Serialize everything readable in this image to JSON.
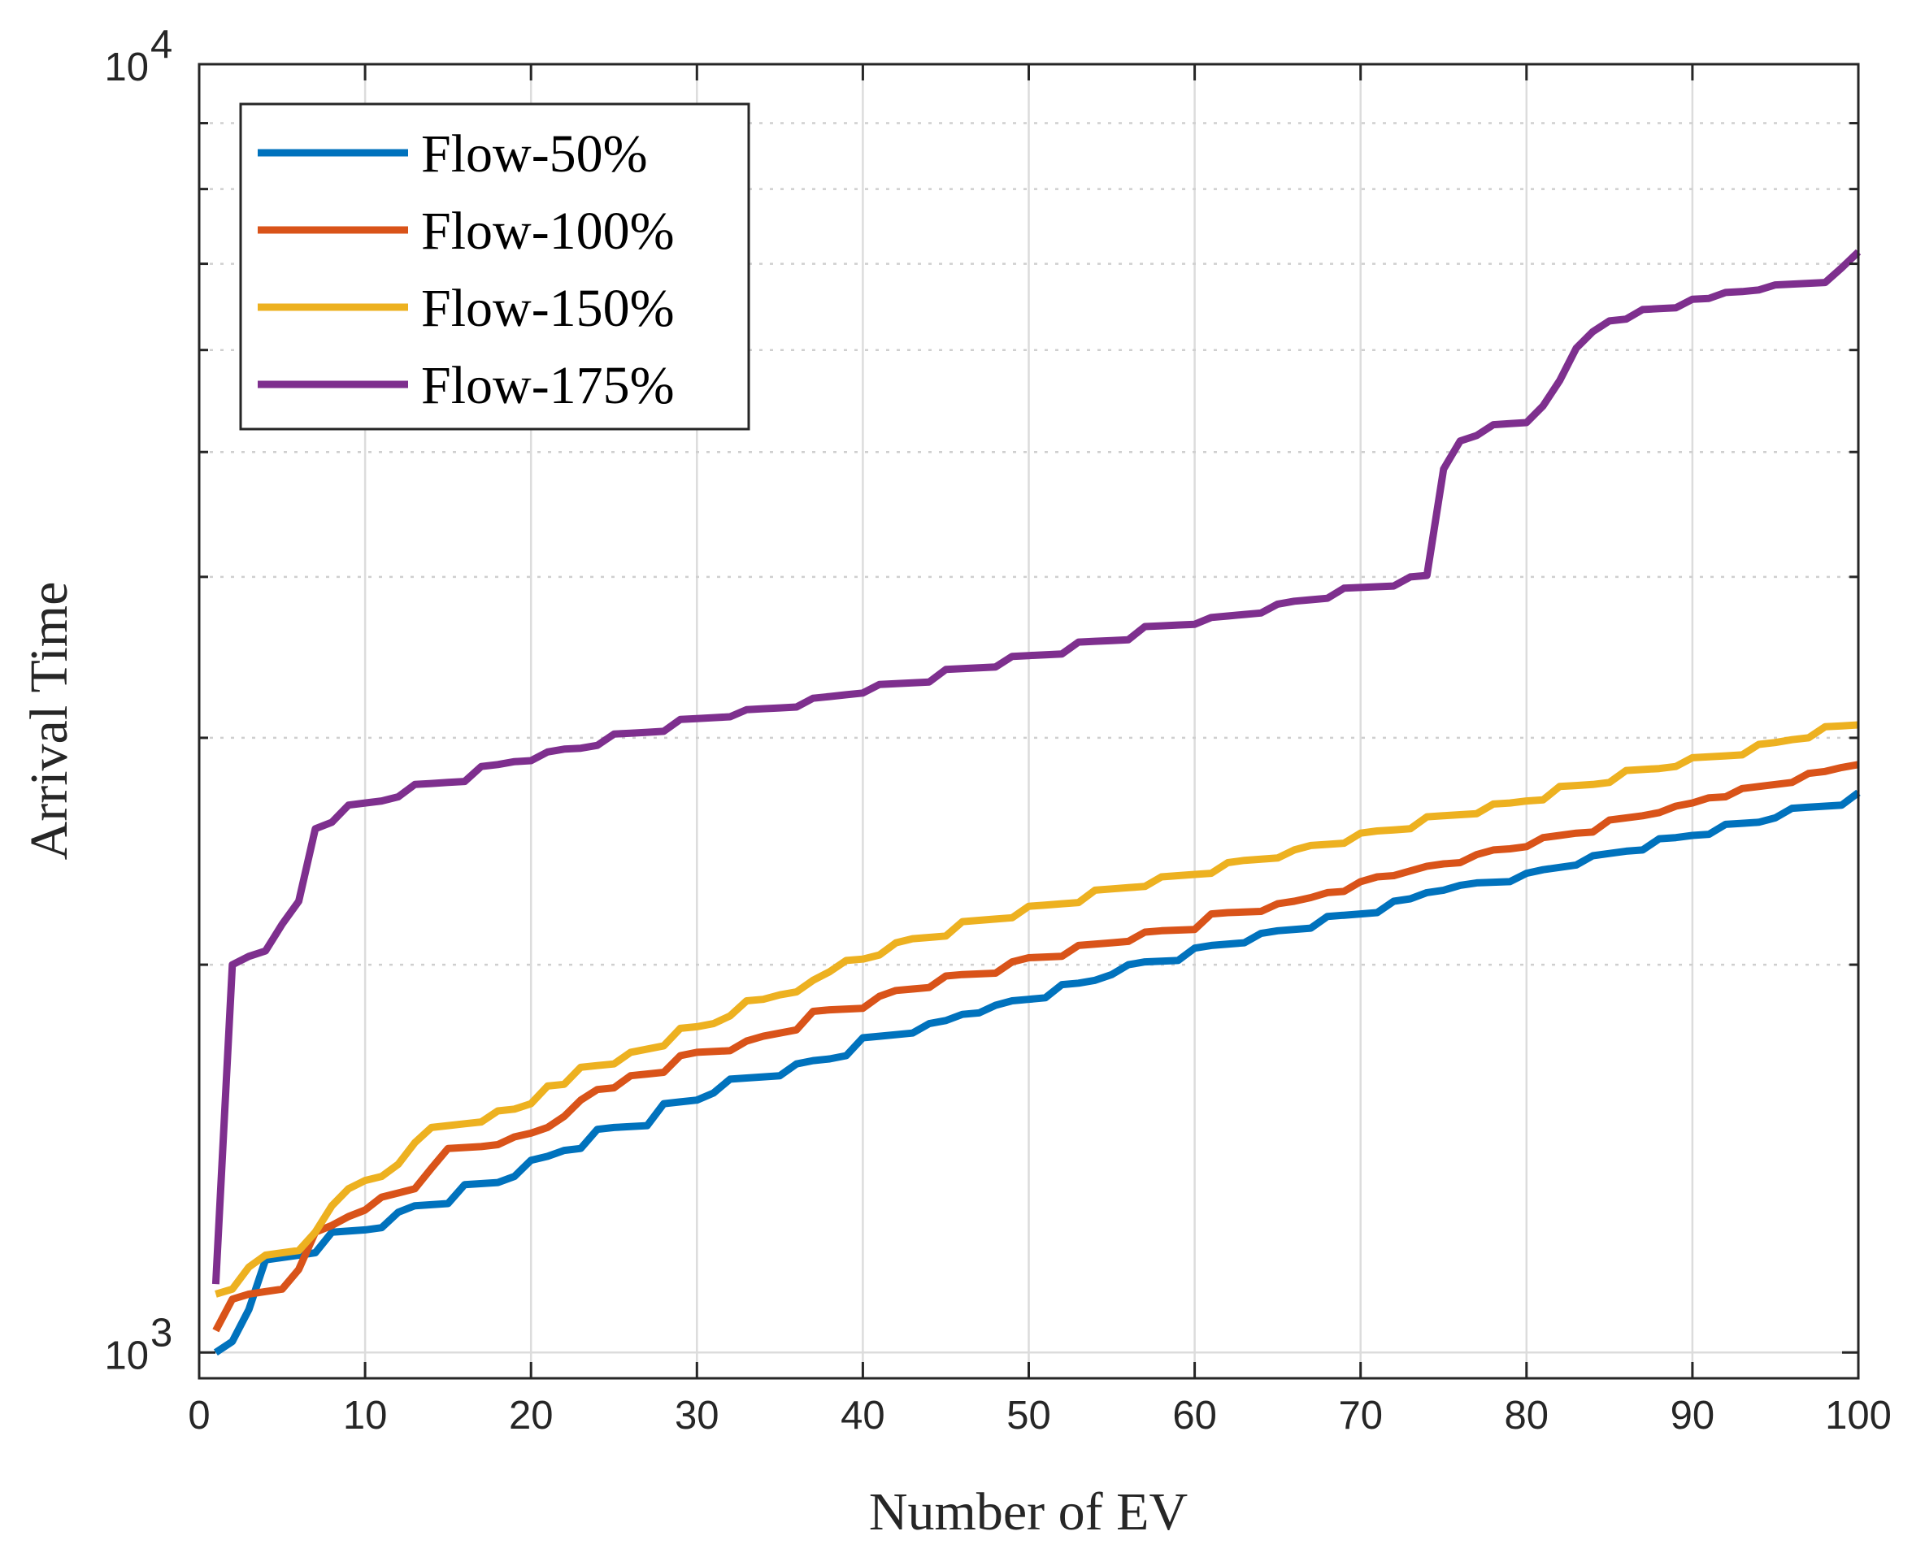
{
  "chart_data": {
    "type": "line",
    "title": "",
    "xlabel": "Number of EV",
    "ylabel": "Arrival Time",
    "xlim": [
      0,
      100
    ],
    "ylim": [
      1000,
      10000
    ],
    "yscale": "log",
    "xticks": [
      0,
      10,
      20,
      30,
      40,
      50,
      60,
      70,
      80,
      90,
      100
    ],
    "xtick_labels": [
      "0",
      "10",
      "20",
      "30",
      "40",
      "50",
      "60",
      "70",
      "80",
      "90",
      "100"
    ],
    "ytick_labels": [
      {
        "base": "10",
        "exp": "3",
        "value": 1000
      },
      {
        "base": "10",
        "exp": "4",
        "value": 10000
      }
    ],
    "grid": true,
    "legend_position": "top-left",
    "series": [
      {
        "name": "Flow-50%",
        "color": "#0072BD",
        "x": [
          1,
          2,
          3,
          4,
          5,
          6,
          7,
          8,
          10,
          11,
          12,
          13,
          15,
          16,
          18,
          19,
          20,
          21,
          22,
          23,
          24,
          25,
          27,
          28,
          29,
          30,
          31,
          32,
          35,
          36,
          37,
          38,
          39,
          40,
          41,
          43,
          44,
          45,
          46,
          47,
          48,
          49,
          50,
          51,
          52,
          53,
          54,
          55,
          56,
          57,
          59,
          60,
          61,
          63,
          64,
          65,
          67,
          68,
          69,
          71,
          72,
          73,
          74,
          75,
          76,
          77,
          79,
          80,
          81,
          82,
          83,
          84,
          85,
          86,
          87,
          88,
          89,
          90,
          91,
          92,
          93,
          94,
          95,
          96,
          97,
          98,
          99,
          100
        ],
        "values": [
          1000,
          1020,
          1080,
          1180,
          1185,
          1190,
          1195,
          1240,
          1245,
          1250,
          1285,
          1300,
          1305,
          1350,
          1355,
          1370,
          1410,
          1420,
          1435,
          1440,
          1490,
          1495,
          1500,
          1560,
          1565,
          1570,
          1590,
          1630,
          1640,
          1675,
          1685,
          1690,
          1700,
          1755,
          1760,
          1770,
          1800,
          1810,
          1830,
          1835,
          1860,
          1875,
          1880,
          1885,
          1930,
          1935,
          1945,
          1965,
          2000,
          2010,
          2015,
          2060,
          2070,
          2080,
          2115,
          2125,
          2135,
          2180,
          2185,
          2195,
          2240,
          2250,
          2275,
          2285,
          2305,
          2315,
          2320,
          2355,
          2370,
          2380,
          2390,
          2430,
          2440,
          2450,
          2455,
          2505,
          2510,
          2520,
          2525,
          2570,
          2575,
          2580,
          2600,
          2645,
          2650,
          2655,
          2660,
          2720
        ]
      },
      {
        "name": "Flow-100%",
        "color": "#D95319",
        "x": [
          1,
          2,
          3,
          4,
          5,
          6,
          7,
          8,
          9,
          10,
          11,
          12,
          13,
          14,
          15,
          17,
          18,
          19,
          20,
          21,
          22,
          23,
          24,
          25,
          26,
          27,
          28,
          29,
          30,
          32,
          33,
          34,
          35,
          36,
          37,
          38,
          40,
          41,
          42,
          43,
          44,
          45,
          46,
          48,
          49,
          50,
          52,
          53,
          55,
          56,
          57,
          58,
          60,
          61,
          62,
          64,
          65,
          66,
          67,
          68,
          69,
          70,
          71,
          72,
          73,
          74,
          75,
          76,
          77,
          78,
          79,
          80,
          81,
          82,
          83,
          84,
          85,
          86,
          87,
          88,
          89,
          90,
          91,
          92,
          93,
          94,
          95,
          96,
          97,
          98,
          99,
          100
        ],
        "values": [
          1040,
          1100,
          1110,
          1115,
          1120,
          1160,
          1240,
          1255,
          1275,
          1290,
          1320,
          1330,
          1340,
          1390,
          1440,
          1445,
          1450,
          1470,
          1480,
          1495,
          1525,
          1570,
          1600,
          1605,
          1640,
          1645,
          1650,
          1700,
          1710,
          1715,
          1745,
          1760,
          1770,
          1780,
          1840,
          1845,
          1850,
          1890,
          1910,
          1915,
          1920,
          1960,
          1965,
          1970,
          2010,
          2025,
          2030,
          2070,
          2080,
          2085,
          2120,
          2125,
          2130,
          2190,
          2195,
          2200,
          2230,
          2240,
          2255,
          2275,
          2280,
          2320,
          2340,
          2345,
          2365,
          2385,
          2395,
          2400,
          2435,
          2455,
          2460,
          2470,
          2510,
          2520,
          2530,
          2535,
          2590,
          2600,
          2610,
          2625,
          2655,
          2670,
          2695,
          2700,
          2740,
          2750,
          2760,
          2770,
          2815,
          2825,
          2845,
          2860
        ]
      },
      {
        "name": "Flow-150%",
        "color": "#EDB120",
        "x": [
          1,
          2,
          3,
          4,
          5,
          6,
          7,
          8,
          9,
          10,
          11,
          12,
          13,
          14,
          15,
          16,
          17,
          18,
          19,
          20,
          21,
          22,
          23,
          24,
          25,
          26,
          27,
          28,
          29,
          30,
          31,
          32,
          33,
          34,
          35,
          36,
          37,
          38,
          39,
          40,
          41,
          42,
          43,
          44,
          45,
          46,
          47,
          48,
          49,
          50,
          51,
          52,
          53,
          54,
          55,
          56,
          57,
          58,
          59,
          60,
          61,
          62,
          63,
          64,
          65,
          66,
          67,
          68,
          69,
          70,
          71,
          72,
          73,
          74,
          75,
          76,
          77,
          78,
          79,
          80,
          81,
          82,
          83,
          84,
          85,
          86,
          87,
          88,
          89,
          90,
          91,
          92,
          93,
          94,
          95,
          96,
          97,
          98,
          99,
          100
        ],
        "values": [
          1110,
          1120,
          1165,
          1190,
          1195,
          1200,
          1240,
          1300,
          1340,
          1360,
          1370,
          1400,
          1455,
          1495,
          1500,
          1505,
          1510,
          1540,
          1545,
          1560,
          1610,
          1615,
          1665,
          1670,
          1675,
          1710,
          1720,
          1730,
          1785,
          1790,
          1800,
          1825,
          1875,
          1880,
          1895,
          1905,
          1945,
          1975,
          2015,
          2020,
          2035,
          2080,
          2095,
          2100,
          2105,
          2160,
          2165,
          2170,
          2175,
          2220,
          2225,
          2230,
          2235,
          2285,
          2290,
          2295,
          2300,
          2340,
          2345,
          2350,
          2355,
          2400,
          2410,
          2415,
          2420,
          2455,
          2475,
          2480,
          2485,
          2530,
          2540,
          2545,
          2550,
          2605,
          2610,
          2615,
          2620,
          2665,
          2670,
          2680,
          2685,
          2750,
          2755,
          2760,
          2770,
          2830,
          2835,
          2840,
          2850,
          2895,
          2900,
          2905,
          2910,
          2965,
          2975,
          2990,
          3000,
          3060,
          3065,
          3070
        ]
      },
      {
        "name": "Flow-175%",
        "color": "#7E2F8E",
        "x": [
          1,
          2,
          3,
          4,
          5,
          6,
          7,
          8,
          9,
          10,
          11,
          12,
          13,
          14,
          15,
          16,
          17,
          18,
          19,
          20,
          21,
          22,
          23,
          24,
          25,
          26,
          27,
          28,
          29,
          30,
          31,
          32,
          33,
          34,
          35,
          36,
          37,
          38,
          39,
          40,
          41,
          42,
          43,
          44,
          45,
          46,
          47,
          48,
          49,
          50,
          51,
          52,
          53,
          54,
          55,
          56,
          57,
          58,
          59,
          60,
          61,
          62,
          63,
          64,
          65,
          66,
          67,
          68,
          69,
          70,
          71,
          72,
          73,
          74,
          75,
          76,
          77,
          78,
          79,
          80,
          81,
          82,
          83,
          84,
          85,
          86,
          87,
          88,
          89,
          90,
          91,
          92,
          93,
          94,
          95,
          96,
          97,
          98,
          99,
          100
        ],
        "values": [
          1130,
          2000,
          2030,
          2050,
          2150,
          2240,
          2550,
          2580,
          2660,
          2670,
          2680,
          2700,
          2760,
          2765,
          2770,
          2775,
          2850,
          2860,
          2875,
          2880,
          2925,
          2940,
          2945,
          2960,
          3020,
          3025,
          3030,
          3035,
          3100,
          3105,
          3110,
          3115,
          3155,
          3160,
          3165,
          3170,
          3220,
          3230,
          3240,
          3250,
          3300,
          3305,
          3310,
          3315,
          3390,
          3395,
          3400,
          3405,
          3470,
          3475,
          3480,
          3485,
          3560,
          3565,
          3570,
          3575,
          3660,
          3665,
          3670,
          3675,
          3720,
          3730,
          3740,
          3750,
          3810,
          3830,
          3840,
          3850,
          3920,
          3925,
          3930,
          3935,
          4000,
          4010,
          4850,
          5100,
          5150,
          5250,
          5260,
          5270,
          5430,
          5680,
          6020,
          6200,
          6320,
          6340,
          6450,
          6460,
          6470,
          6570,
          6580,
          6650,
          6660,
          6680,
          6740,
          6750,
          6760,
          6770,
          6950,
          7150
        ]
      }
    ]
  }
}
